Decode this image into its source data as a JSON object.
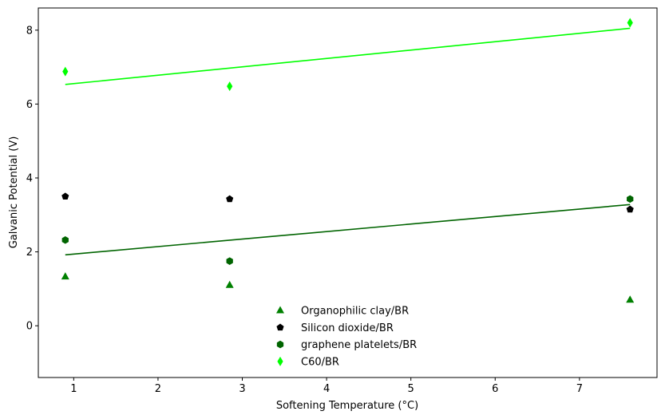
{
  "chart_data": {
    "type": "scatter",
    "xlabel": "Softening Temperature (°C)",
    "ylabel": "Galvanic Potential (V)",
    "xlim": [
      0.58,
      7.92
    ],
    "ylim": [
      -1.4,
      8.6
    ],
    "xticks": [
      1,
      2,
      3,
      4,
      5,
      6,
      7
    ],
    "yticks": [
      0,
      2,
      4,
      6,
      8
    ],
    "grid": false,
    "legend_position": "bottom-center",
    "series": [
      {
        "name": "Organophilic clay/BR",
        "marker": "triangle",
        "color": "#008000",
        "x": [
          0.9,
          2.85,
          7.6
        ],
        "y": [
          1.33,
          1.1,
          0.7
        ]
      },
      {
        "name": "Silicon dioxide/BR",
        "marker": "pentagon",
        "color": "#000000",
        "x": [
          0.9,
          2.85,
          7.6
        ],
        "y": [
          3.5,
          3.43,
          3.15
        ]
      },
      {
        "name": "graphene platelets/BR",
        "marker": "hexagon",
        "color": "#006400",
        "x": [
          0.9,
          2.85,
          7.6
        ],
        "y": [
          2.32,
          1.75,
          3.43
        ]
      },
      {
        "name": "C60/BR",
        "marker": "thin-diamond",
        "color": "#00ff00",
        "x": [
          0.9,
          2.85,
          7.6
        ],
        "y": [
          6.88,
          6.48,
          8.2
        ]
      }
    ],
    "trend_lines": [
      {
        "color": "#00ff00",
        "x": [
          0.9,
          7.6
        ],
        "y": [
          6.53,
          8.05
        ]
      },
      {
        "color": "#006400",
        "x": [
          0.9,
          7.6
        ],
        "y": [
          1.92,
          3.28
        ]
      }
    ]
  }
}
